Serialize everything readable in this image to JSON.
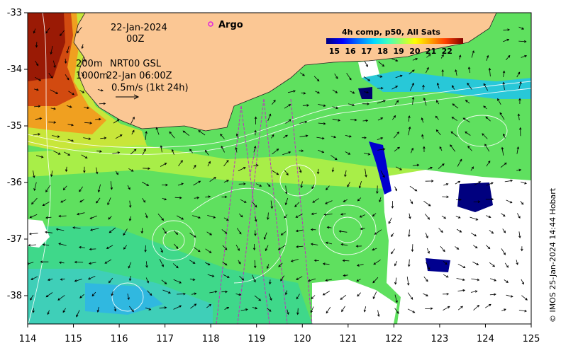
{
  "map": {
    "date_line1": "22-Jan-2024",
    "date_line2": "00Z",
    "argo_label": "Argo",
    "contour_line1": "200m",
    "contour_line2": "1000m",
    "product_line1": "NRT00 GSL",
    "product_line2": "22-Jan 06:00Z",
    "vector_scale": "0.5m/s (1kt 24h)",
    "credit": "© IMOS 25-Jan-2024 14:44 Hobart"
  },
  "axes": {
    "x_ticks": [
      "114",
      "115",
      "116",
      "117",
      "118",
      "119",
      "120",
      "121",
      "122",
      "123",
      "124",
      "125"
    ],
    "y_ticks": [
      "-33",
      "-34",
      "-35",
      "-36",
      "-37",
      "-38"
    ],
    "x_range": [
      114,
      125
    ],
    "y_range": [
      -38.5,
      -33
    ]
  },
  "colorbar": {
    "title": "4h comp, p50, All Sats",
    "ticks": [
      "15",
      "16",
      "17",
      "18",
      "19",
      "20",
      "21",
      "22"
    ],
    "range": [
      14.5,
      23
    ],
    "colors": [
      "#00007f",
      "#0000ff",
      "#007fff",
      "#00d0ff",
      "#3fffbf",
      "#7fff7f",
      "#bfff3f",
      "#ffff00",
      "#ffbf00",
      "#ff7f00",
      "#ff3f00",
      "#bf0000",
      "#7f0000"
    ]
  },
  "colors": {
    "land": "#fbc794",
    "ocean_green": "#5fe05f",
    "no_data": "#ffffff"
  }
}
